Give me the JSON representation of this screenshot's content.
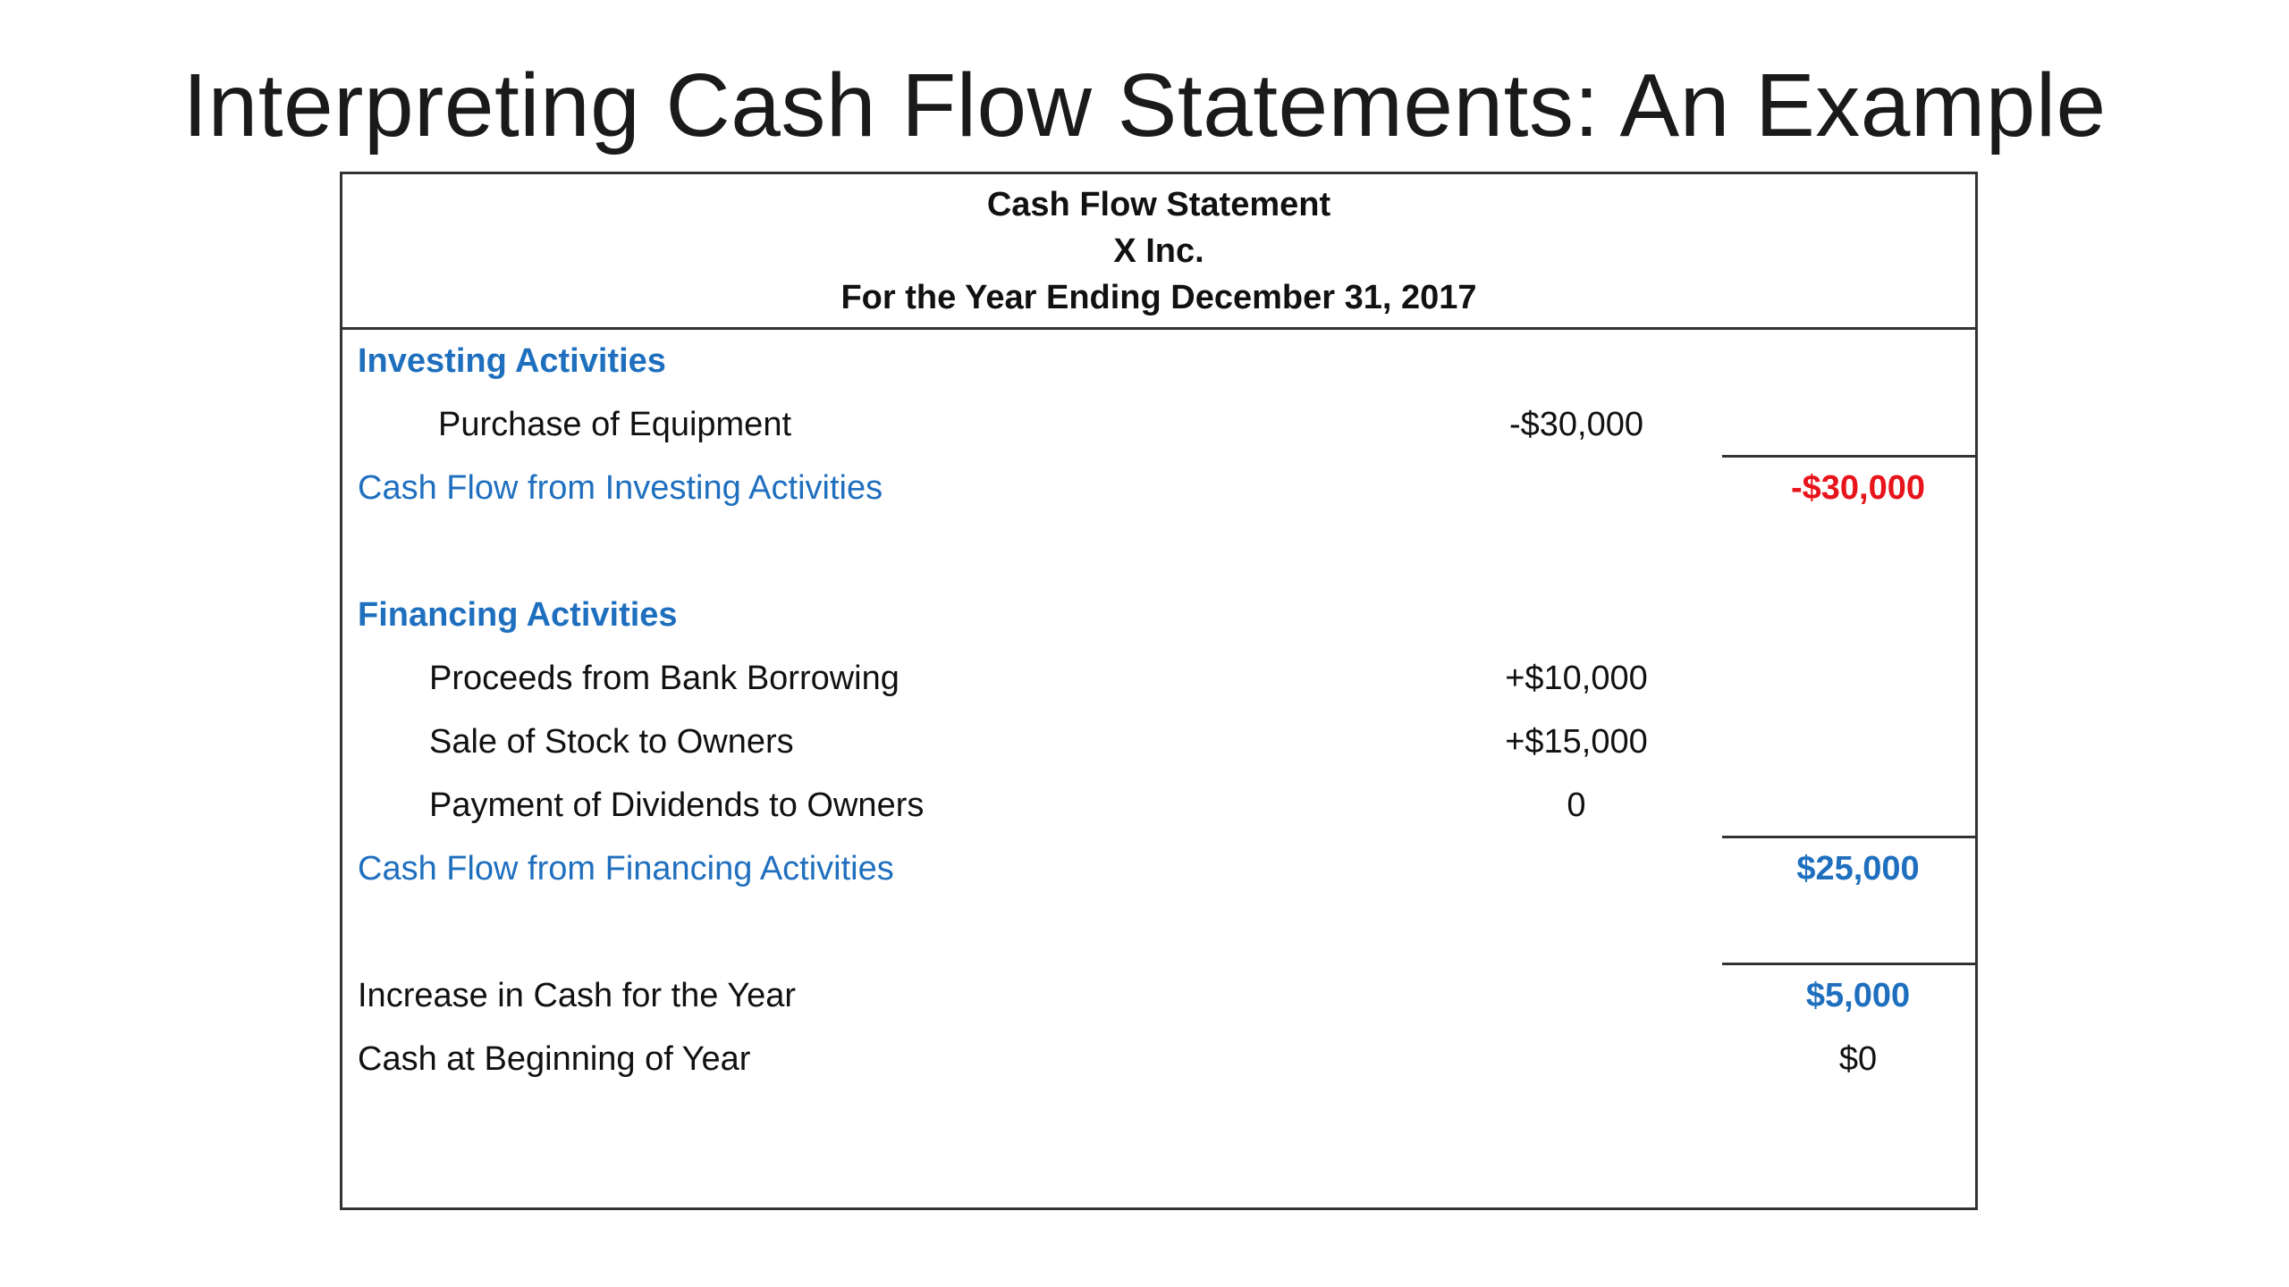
{
  "slide": {
    "title": "Interpreting Cash Flow Statements: An Example"
  },
  "statement": {
    "header": {
      "title": "Cash Flow Statement",
      "company": "X Inc.",
      "period": "For the Year Ending December 31, 2017"
    },
    "investing": {
      "heading": "Investing Activities",
      "items": [
        {
          "label": "Purchase of Equipment",
          "amount": "-$30,000"
        }
      ],
      "subtotal_label": "Cash Flow from Investing Activities",
      "subtotal_value": "-$30,000"
    },
    "financing": {
      "heading": "Financing Activities",
      "items": [
        {
          "label": "Proceeds from Bank Borrowing",
          "amount": "+$10,000"
        },
        {
          "label": "Sale of Stock to Owners",
          "amount": "+$15,000"
        },
        {
          "label": "Payment of Dividends to Owners",
          "amount": "0"
        }
      ],
      "subtotal_label": "Cash Flow from Financing Activities",
      "subtotal_value": "$25,000"
    },
    "summary": {
      "increase_label": "Increase in Cash for the Year",
      "increase_value": "$5,000",
      "beginning_label": "Cash at Beginning of Year",
      "beginning_value": "$0"
    }
  },
  "colors": {
    "accent_blue": "#1f6fbf",
    "negative_red": "#e8141b",
    "border": "#333333"
  }
}
